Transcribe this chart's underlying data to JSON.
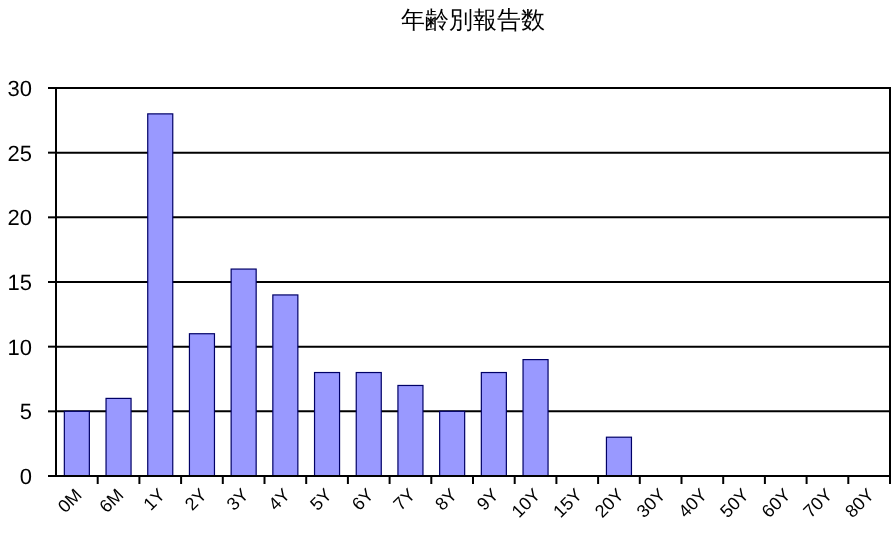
{
  "chart_data": {
    "type": "bar",
    "title": "年齢別報告数",
    "categories": [
      "0M",
      "6M",
      "1Y",
      "2Y",
      "3Y",
      "4Y",
      "5Y",
      "6Y",
      "7Y",
      "8Y",
      "9Y",
      "10Y",
      "15Y",
      "20Y",
      "30Y",
      "40Y",
      "50Y",
      "60Y",
      "70Y",
      "80Y"
    ],
    "values": [
      5,
      6,
      28,
      11,
      16,
      14,
      8,
      8,
      7,
      5,
      8,
      9,
      0,
      3,
      0,
      0,
      0,
      0,
      0,
      0
    ],
    "color": "#9999ff",
    "ylim": [
      0,
      30
    ],
    "yticks": [
      0,
      5,
      10,
      15,
      20,
      25,
      30
    ],
    "grid": "y"
  }
}
